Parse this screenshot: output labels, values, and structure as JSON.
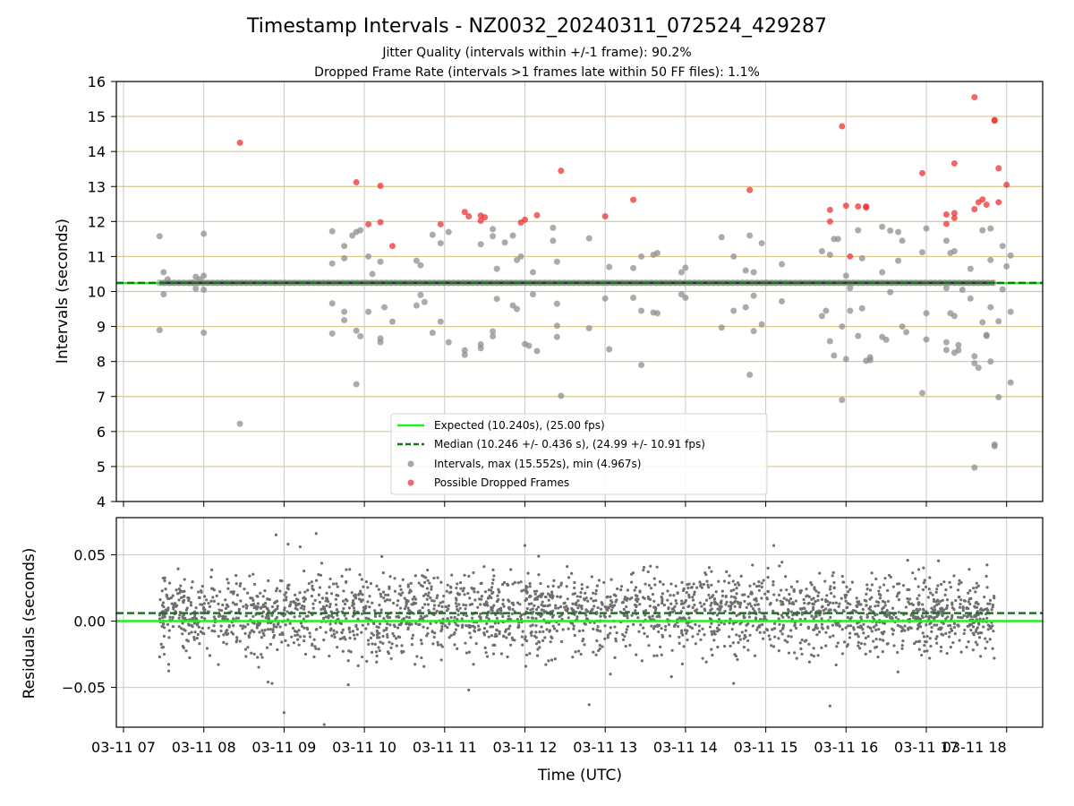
{
  "title": "Timestamp Intervals - NZ0032_20240311_072524_429287",
  "subtitle_1": "Jitter Quality (intervals within +/-1 frame): 90.2%",
  "subtitle_2": "Dropped Frame Rate (intervals >1 frames late within 50 FF files): 1.1%",
  "chart_data": [
    {
      "type": "scatter",
      "name": "intervals",
      "ylabel": "Intervals (seconds)",
      "ylim": [
        4,
        16
      ],
      "y_ticks": [
        "4",
        "5",
        "6",
        "7",
        "8",
        "9",
        "10",
        "11",
        "12",
        "13",
        "14",
        "15",
        "16"
      ],
      "x_range_hours": [
        7.0,
        18.0
      ],
      "grid": true,
      "legend_position": "lower center",
      "colors": {
        "expected": "#22ee22",
        "median": "#127a12",
        "interval": "#8a8a8a",
        "dropped": "#ee3333",
        "hgrid": "#d8c88a",
        "vgrid": "#c9c9c9"
      },
      "expected_interval": 10.24,
      "median_interval": 10.246,
      "legend": [
        "Expected (10.240s), (25.00 fps)",
        "Median (10.246 +/- 0.436 s), (24.99 +/- 10.91 fps)",
        "Intervals, max (15.552s), min (4.967s)",
        "Possible Dropped Frames"
      ],
      "baseline_span_hours": [
        7.45,
        17.85
      ],
      "intervals": [
        [
          7.45,
          11.58
        ],
        [
          7.45,
          8.9
        ],
        [
          7.5,
          10.55
        ],
        [
          7.5,
          9.92
        ],
        [
          7.55,
          10.35
        ],
        [
          7.85,
          10.25
        ],
        [
          7.9,
          10.42
        ],
        [
          7.9,
          10.08
        ],
        [
          7.95,
          10.35
        ],
        [
          8.0,
          11.65
        ],
        [
          8.0,
          8.82
        ],
        [
          8.0,
          10.45
        ],
        [
          8.0,
          10.05
        ],
        [
          8.45,
          6.22
        ],
        [
          9.6,
          11.72
        ],
        [
          9.6,
          10.8
        ],
        [
          9.6,
          9.66
        ],
        [
          9.6,
          8.8
        ],
        [
          9.75,
          11.3
        ],
        [
          9.75,
          10.95
        ],
        [
          9.75,
          9.42
        ],
        [
          9.75,
          9.18
        ],
        [
          9.85,
          11.6
        ],
        [
          9.9,
          11.7
        ],
        [
          9.9,
          8.88
        ],
        [
          9.9,
          7.35
        ],
        [
          9.95,
          11.75
        ],
        [
          9.95,
          8.72
        ],
        [
          10.05,
          11.0
        ],
        [
          10.05,
          9.42
        ],
        [
          10.1,
          10.5
        ],
        [
          10.2,
          10.85
        ],
        [
          10.2,
          8.66
        ],
        [
          10.2,
          8.55
        ],
        [
          10.25,
          9.55
        ],
        [
          10.35,
          9.14
        ],
        [
          10.65,
          10.88
        ],
        [
          10.65,
          9.6
        ],
        [
          10.7,
          10.75
        ],
        [
          10.7,
          9.9
        ],
        [
          10.75,
          9.7
        ],
        [
          10.85,
          11.62
        ],
        [
          10.85,
          8.82
        ],
        [
          10.95,
          11.38
        ],
        [
          10.95,
          9.14
        ],
        [
          11.05,
          11.7
        ],
        [
          11.05,
          8.55
        ],
        [
          11.25,
          8.19
        ],
        [
          11.25,
          8.32
        ],
        [
          11.45,
          11.35
        ],
        [
          11.45,
          8.49
        ],
        [
          11.45,
          8.38
        ],
        [
          11.6,
          11.78
        ],
        [
          11.6,
          11.58
        ],
        [
          11.6,
          8.86
        ],
        [
          11.6,
          8.72
        ],
        [
          11.65,
          10.65
        ],
        [
          11.65,
          9.79
        ],
        [
          11.75,
          11.4
        ],
        [
          11.85,
          11.6
        ],
        [
          11.85,
          9.6
        ],
        [
          11.9,
          10.9
        ],
        [
          11.9,
          9.5
        ],
        [
          11.95,
          11.0
        ],
        [
          12.0,
          8.5
        ],
        [
          12.05,
          8.45
        ],
        [
          12.1,
          10.55
        ],
        [
          12.1,
          9.92
        ],
        [
          12.15,
          8.3
        ],
        [
          12.35,
          11.82
        ],
        [
          12.35,
          11.45
        ],
        [
          12.4,
          10.85
        ],
        [
          12.4,
          9.65
        ],
        [
          12.4,
          9.02
        ],
        [
          12.4,
          8.7
        ],
        [
          12.45,
          7.02
        ],
        [
          12.8,
          11.52
        ],
        [
          12.8,
          8.95
        ],
        [
          13.0,
          9.8
        ],
        [
          13.05,
          8.35
        ],
        [
          13.05,
          10.7
        ],
        [
          13.35,
          10.67
        ],
        [
          13.35,
          9.82
        ],
        [
          13.45,
          11.0
        ],
        [
          13.45,
          9.45
        ],
        [
          13.45,
          7.9
        ],
        [
          13.6,
          11.05
        ],
        [
          13.6,
          9.4
        ],
        [
          13.65,
          11.1
        ],
        [
          13.65,
          9.38
        ],
        [
          13.95,
          10.55
        ],
        [
          13.95,
          9.92
        ],
        [
          14.0,
          10.68
        ],
        [
          14.0,
          9.82
        ],
        [
          14.45,
          11.55
        ],
        [
          14.45,
          8.97
        ],
        [
          14.6,
          11.0
        ],
        [
          14.6,
          9.45
        ],
        [
          14.75,
          10.6
        ],
        [
          14.75,
          9.55
        ],
        [
          14.8,
          11.6
        ],
        [
          14.8,
          7.62
        ],
        [
          14.85,
          8.87
        ],
        [
          14.85,
          10.55
        ],
        [
          14.85,
          9.88
        ],
        [
          14.95,
          11.38
        ],
        [
          14.95,
          9.06
        ],
        [
          15.0,
          10.25
        ],
        [
          15.2,
          10.78
        ],
        [
          15.2,
          9.72
        ],
        [
          15.7,
          11.15
        ],
        [
          15.7,
          9.3
        ],
        [
          15.75,
          9.45
        ],
        [
          15.8,
          11.05
        ],
        [
          15.8,
          8.58
        ],
        [
          15.85,
          11.5
        ],
        [
          15.85,
          8.17
        ],
        [
          15.9,
          11.5
        ],
        [
          15.95,
          9.0
        ],
        [
          15.95,
          6.9
        ],
        [
          16.0,
          10.45
        ],
        [
          16.0,
          8.07
        ],
        [
          16.05,
          10.1
        ],
        [
          16.05,
          9.45
        ],
        [
          16.15,
          11.75
        ],
        [
          16.15,
          8.73
        ],
        [
          16.2,
          10.95
        ],
        [
          16.2,
          9.52
        ],
        [
          16.25,
          8.02
        ],
        [
          16.3,
          8.12
        ],
        [
          16.3,
          8.04
        ],
        [
          16.45,
          11.85
        ],
        [
          16.45,
          10.55
        ],
        [
          16.45,
          8.7
        ],
        [
          16.5,
          8.62
        ],
        [
          16.55,
          11.74
        ],
        [
          16.55,
          9.98
        ],
        [
          16.65,
          11.7
        ],
        [
          16.65,
          10.88
        ],
        [
          16.7,
          11.45
        ],
        [
          16.7,
          9.0
        ],
        [
          16.75,
          8.84
        ],
        [
          16.95,
          7.1
        ],
        [
          16.95,
          11.12
        ],
        [
          17.0,
          11.8
        ],
        [
          17.0,
          9.38
        ],
        [
          17.0,
          8.63
        ],
        [
          17.25,
          11.45
        ],
        [
          17.25,
          10.1
        ],
        [
          17.25,
          8.55
        ],
        [
          17.25,
          8.33
        ],
        [
          17.3,
          11.1
        ],
        [
          17.3,
          9.38
        ],
        [
          17.35,
          11.15
        ],
        [
          17.35,
          9.3
        ],
        [
          17.35,
          8.25
        ],
        [
          17.4,
          8.47
        ],
        [
          17.4,
          8.32
        ],
        [
          17.45,
          10.05
        ],
        [
          17.55,
          10.65
        ],
        [
          17.55,
          9.8
        ],
        [
          17.6,
          8.15
        ],
        [
          17.6,
          7.95
        ],
        [
          17.6,
          4.97
        ],
        [
          17.65,
          7.82
        ],
        [
          17.7,
          11.75
        ],
        [
          17.7,
          9.12
        ],
        [
          17.75,
          8.76
        ],
        [
          17.75,
          8.73
        ],
        [
          17.8,
          11.8
        ],
        [
          17.8,
          10.9
        ],
        [
          17.8,
          9.55
        ],
        [
          17.8,
          8.0
        ],
        [
          17.85,
          5.58
        ],
        [
          17.85,
          5.63
        ],
        [
          17.9,
          6.98
        ],
        [
          17.9,
          9.15
        ],
        [
          17.95,
          11.3
        ],
        [
          17.95,
          10.06
        ],
        [
          18.0,
          10.72
        ],
        [
          18.05,
          7.4
        ],
        [
          18.05,
          9.42
        ],
        [
          18.05,
          11.03
        ]
      ],
      "dropped": [
        [
          8.45,
          14.25
        ],
        [
          9.9,
          13.12
        ],
        [
          10.05,
          11.92
        ],
        [
          10.2,
          11.98
        ],
        [
          10.2,
          13.02
        ],
        [
          10.35,
          11.3
        ],
        [
          10.95,
          11.92
        ],
        [
          11.25,
          12.27
        ],
        [
          11.3,
          12.15
        ],
        [
          11.45,
          12.02
        ],
        [
          11.45,
          12.17
        ],
        [
          11.5,
          12.12
        ],
        [
          11.95,
          11.97
        ],
        [
          12.0,
          12.05
        ],
        [
          12.15,
          12.18
        ],
        [
          12.45,
          13.45
        ],
        [
          13.0,
          12.15
        ],
        [
          13.35,
          12.62
        ],
        [
          14.8,
          12.9
        ],
        [
          15.8,
          12.33
        ],
        [
          15.8,
          12.0
        ],
        [
          15.95,
          14.72
        ],
        [
          16.0,
          12.45
        ],
        [
          16.05,
          11.0
        ],
        [
          16.15,
          12.43
        ],
        [
          16.25,
          12.4
        ],
        [
          16.25,
          12.43
        ],
        [
          16.95,
          13.38
        ],
        [
          17.25,
          12.2
        ],
        [
          17.25,
          11.93
        ],
        [
          17.35,
          12.24
        ],
        [
          17.35,
          12.1
        ],
        [
          17.35,
          13.66
        ],
        [
          17.6,
          15.55
        ],
        [
          17.6,
          12.35
        ],
        [
          17.65,
          12.55
        ],
        [
          17.7,
          12.63
        ],
        [
          17.75,
          12.48
        ],
        [
          17.85,
          14.88
        ],
        [
          17.85,
          14.9
        ],
        [
          17.9,
          13.52
        ],
        [
          17.9,
          12.55
        ],
        [
          18.0,
          13.05
        ]
      ]
    },
    {
      "type": "scatter",
      "name": "residuals",
      "ylabel": "Residuals (seconds)",
      "ylim": [
        -0.08,
        0.078
      ],
      "y_ticks": [
        "−0.05",
        "0.00",
        "0.05"
      ],
      "y_tick_values": [
        -0.05,
        0.0,
        0.05
      ],
      "xlabel": "Time (UTC)",
      "x_ticks": [
        "03-11 07",
        "03-11 08",
        "03-11 09",
        "03-11 10",
        "03-11 11",
        "03-11 12",
        "03-11 13",
        "03-11 14",
        "03-11 15",
        "03-11 16",
        "03-11 17",
        "03-11 18"
      ],
      "expected_residual": 0.0,
      "median_residual": 0.006,
      "residual_sd": 0.02,
      "residual_count": 2600,
      "outliers": [
        [
          8.9,
          0.065
        ],
        [
          9.05,
          0.058
        ],
        [
          9.2,
          0.056
        ],
        [
          9.4,
          0.066
        ],
        [
          12.0,
          0.057
        ],
        [
          15.1,
          0.057
        ],
        [
          7.45,
          -0.027
        ],
        [
          8.8,
          -0.046
        ],
        [
          8.85,
          -0.047
        ],
        [
          9.8,
          -0.048
        ],
        [
          9.5,
          -0.078
        ],
        [
          9.6,
          -0.081
        ],
        [
          11.3,
          -0.052
        ],
        [
          12.8,
          -0.063
        ],
        [
          15.0,
          -0.082
        ],
        [
          15.8,
          -0.064
        ],
        [
          9.0,
          -0.069
        ],
        [
          14.6,
          -0.047
        ]
      ]
    }
  ]
}
